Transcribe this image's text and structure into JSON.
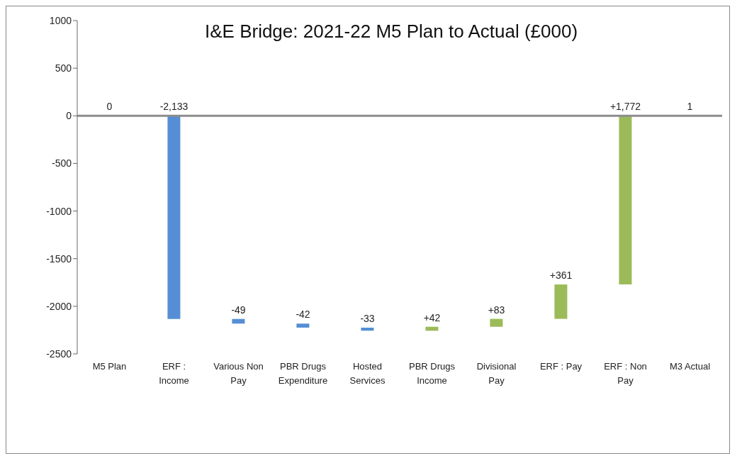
{
  "chart_data": {
    "type": "bar",
    "title": "I&E Bridge: 2021-22 M5 Plan to Actual (£000)",
    "categories": [
      "M5 Plan",
      "ERF : Income",
      "Various Non Pay",
      "PBR Drugs Expenditure",
      "Hosted Services",
      "PBR Drugs Income",
      "Divisional Pay",
      "ERF : Pay",
      "ERF : Non Pay",
      "M3 Actual"
    ],
    "values": [
      0,
      -2133,
      -49,
      -42,
      -33,
      42,
      83,
      361,
      1772,
      1
    ],
    "base": [
      null,
      0,
      -2133,
      -2182,
      -2224,
      -2257,
      -2215,
      -2132,
      -1771,
      0
    ],
    "colors": [
      "#558ed5",
      "#558ed5",
      "#558ed5",
      "#558ed5",
      "#558ed5",
      "#9bbb59",
      "#9bbb59",
      "#9bbb59",
      "#9bbb59",
      "#9bbb59"
    ],
    "value_labels": [
      "0",
      "-2,133",
      "-49",
      "-42",
      "-33",
      "+42",
      "+83",
      "+361",
      "+1,772",
      "1"
    ],
    "ylim": [
      -2500,
      1000
    ],
    "yticks": [
      -2500,
      -2000,
      -1500,
      -1000,
      -500,
      0,
      500,
      1000
    ],
    "ref_lines": [
      {
        "axis": "y",
        "value": 0,
        "color": "#8c8c8c"
      }
    ]
  }
}
